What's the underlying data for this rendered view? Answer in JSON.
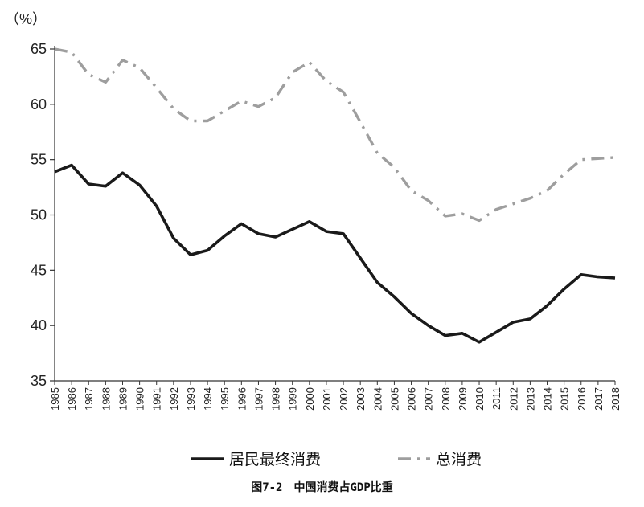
{
  "caption": "图7-2　中国消费占GDP比重",
  "chart_data": {
    "type": "line",
    "ylabel": "（%）",
    "ylim": [
      35,
      65
    ],
    "yticks": [
      35,
      40,
      45,
      50,
      55,
      60,
      65
    ],
    "x": [
      "1985",
      "1986",
      "1987",
      "1988",
      "1989",
      "1990",
      "1991",
      "1992",
      "1993",
      "1994",
      "1995",
      "1996",
      "1997",
      "1998",
      "1999",
      "2000",
      "2001",
      "2002",
      "2003",
      "2004",
      "2005",
      "2006",
      "2007",
      "2008",
      "2009",
      "2010",
      "2011",
      "2012",
      "2013",
      "2014",
      "2015",
      "2016",
      "2017",
      "2018"
    ],
    "series": [
      {
        "name": "居民最终消费",
        "color": "#1a1a1a",
        "style": "solid",
        "values": [
          53.9,
          54.5,
          52.8,
          52.6,
          53.8,
          52.7,
          50.8,
          47.9,
          46.4,
          46.8,
          48.1,
          49.2,
          48.3,
          48.0,
          48.7,
          49.4,
          48.5,
          48.3,
          46.1,
          43.9,
          42.6,
          41.1,
          40.0,
          39.1,
          39.3,
          38.5,
          39.4,
          40.3,
          40.6,
          41.8,
          43.3,
          44.6,
          44.4,
          44.3
        ]
      },
      {
        "name": "总消费",
        "color": "#9e9e9e",
        "style": "dash-dot",
        "values": [
          65.0,
          64.7,
          62.7,
          62.0,
          64.0,
          63.3,
          61.5,
          59.6,
          58.5,
          58.5,
          59.4,
          60.3,
          59.8,
          60.6,
          62.9,
          63.8,
          62.1,
          61.1,
          58.4,
          55.6,
          54.3,
          52.2,
          51.3,
          49.9,
          50.1,
          49.5,
          50.5,
          51.0,
          51.5,
          52.2,
          53.7,
          55.0,
          55.1,
          55.2
        ]
      }
    ],
    "legend_position": "bottom"
  }
}
